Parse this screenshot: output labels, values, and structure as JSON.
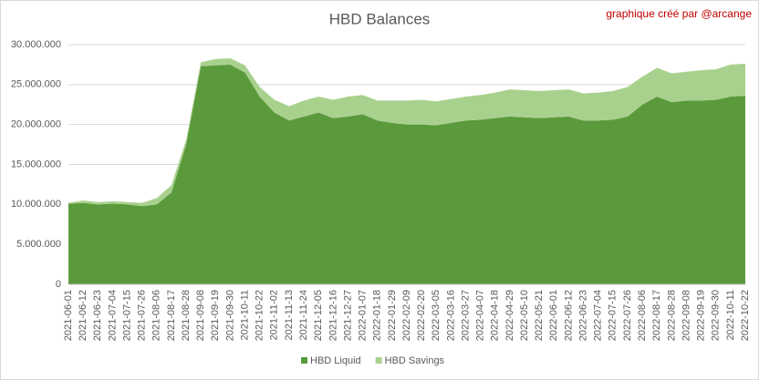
{
  "chart_data": {
    "type": "stacked-area",
    "title": "HBD Balances",
    "subtitle": "graphique créé par @arcange",
    "categories": [
      "2021-06-01",
      "2021-06-12",
      "2021-06-23",
      "2021-07-04",
      "2021-07-15",
      "2021-07-26",
      "2021-08-06",
      "2021-08-17",
      "2021-08-28",
      "2021-09-08",
      "2021-09-19",
      "2021-09-30",
      "2021-10-11",
      "2021-10-22",
      "2021-11-02",
      "2021-11-13",
      "2021-11-24",
      "2021-12-05",
      "2021-12-16",
      "2021-12-27",
      "2022-01-07",
      "2022-01-18",
      "2022-01-29",
      "2022-02-09",
      "2022-02-20",
      "2022-03-05",
      "2022-03-16",
      "2022-03-27",
      "2022-04-07",
      "2022-04-18",
      "2022-04-29",
      "2022-05-10",
      "2022-05-21",
      "2022-06-01",
      "2022-06-12",
      "2022-06-23",
      "2022-07-04",
      "2022-07-15",
      "2022-07-26",
      "2022-08-06",
      "2022-08-17",
      "2022-08-28",
      "2022-09-08",
      "2022-09-19",
      "2022-09-30",
      "2022-10-11",
      "2022-10-22"
    ],
    "series": [
      {
        "name": "HBD Liquid",
        "color": "#5b9a3c",
        "values": [
          10100000,
          10200000,
          10000000,
          10100000,
          10000000,
          9800000,
          10000000,
          11500000,
          17500000,
          27300000,
          27400000,
          27500000,
          26500000,
          23500000,
          21500000,
          20500000,
          21000000,
          21500000,
          20800000,
          21000000,
          21300000,
          20500000,
          20200000,
          20000000,
          20000000,
          19900000,
          20200000,
          20500000,
          20600000,
          20800000,
          21000000,
          20900000,
          20800000,
          20900000,
          21000000,
          20500000,
          20500000,
          20600000,
          21000000,
          22500000,
          23500000,
          22800000,
          23000000,
          23000000,
          23100000,
          23500000,
          23600000
        ]
      },
      {
        "name": "HBD Savings",
        "color": "#a9d18e",
        "values": [
          100000,
          300000,
          300000,
          300000,
          300000,
          400000,
          800000,
          900000,
          600000,
          500000,
          800000,
          800000,
          900000,
          1200000,
          1600000,
          1800000,
          2000000,
          2000000,
          2300000,
          2500000,
          2400000,
          2500000,
          2800000,
          3000000,
          3100000,
          3000000,
          3000000,
          3000000,
          3100000,
          3200000,
          3400000,
          3400000,
          3400000,
          3400000,
          3400000,
          3400000,
          3500000,
          3600000,
          3700000,
          3500000,
          3600000,
          3600000,
          3600000,
          3800000,
          3800000,
          4000000,
          4000000
        ]
      }
    ],
    "ylim": [
      0,
      30000000
    ],
    "yticks": [
      0,
      {
        "value": 5000000,
        "label": "5.000.000"
      },
      {
        "value": 10000000,
        "label": "10.000.000"
      },
      {
        "value": 15000000,
        "label": "15.000.000"
      },
      {
        "value": 20000000,
        "label": "20.000.000"
      },
      {
        "value": 25000000,
        "label": "25.000.000"
      },
      {
        "value": 30000000,
        "label": "30.000.000"
      }
    ],
    "grid": true,
    "legend": "bottom"
  }
}
